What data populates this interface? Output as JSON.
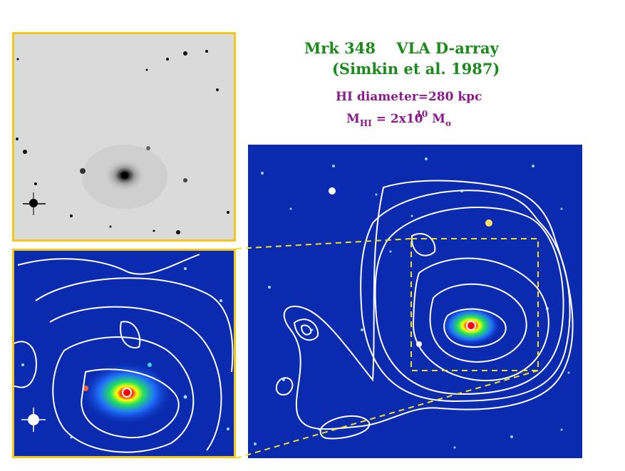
{
  "header": {
    "title_line1": "Mrk 348    VLA D-array",
    "title_line2": "(Simkin et al. 1987)",
    "hi_diameter": "HI diameter=280 kpc",
    "mass_symbol": "M",
    "mass_subscript": "HI",
    "mass_value": " = 2x10",
    "mass_exponent": "10",
    "mass_unit": " M",
    "mass_unit_subscript": "o"
  },
  "colors": {
    "title": "#1a8a1a",
    "stats": "#8a1a8a",
    "frame": "#f5c518",
    "dashed_box": "#f0e020",
    "contour": "#ffffff",
    "sky_background": "#0a2ab0",
    "optical_background": "#d8d8d8"
  },
  "images": {
    "optical": "grayscale optical image of spiral galaxy Mrk 348",
    "zoom": "false-color zoomed galaxy core with HI contours",
    "main": "false-color field with HI contour map"
  }
}
